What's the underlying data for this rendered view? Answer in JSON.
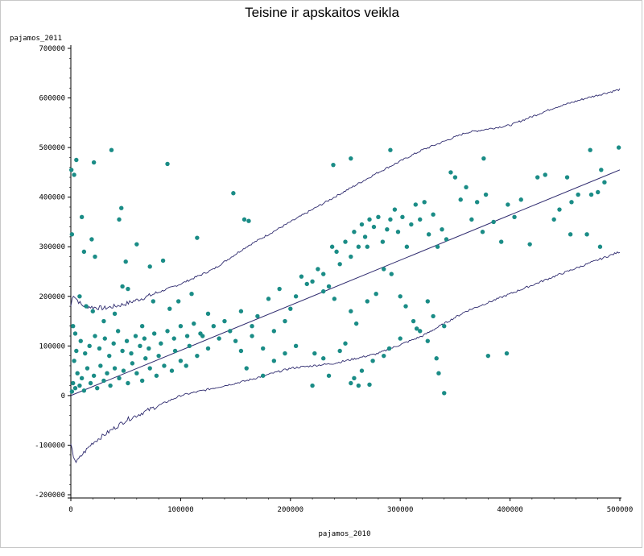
{
  "chart_data": {
    "type": "scatter",
    "title": "Teisine ir apskaitos veikla",
    "xlabel": "pajamos_2010",
    "ylabel": "pajamos_2011",
    "xlim": [
      0,
      500000
    ],
    "ylim": [
      -200000,
      700000
    ],
    "x_ticks": [
      "0",
      "100000",
      "200000",
      "300000",
      "400000",
      "500000"
    ],
    "y_ticks": [
      "-200000",
      "-100000",
      "0",
      "100000",
      "200000",
      "300000",
      "400000",
      "500000",
      "600000",
      "700000"
    ],
    "point_color": "#1a8c86",
    "line_color": "#2e2a6e",
    "grid": false,
    "series": [
      {
        "type": "points",
        "points": [
          [
            500,
            455000
          ],
          [
            3000,
            445000
          ],
          [
            5000,
            475000
          ],
          [
            21000,
            470000
          ],
          [
            37000,
            495000
          ],
          [
            88000,
            467000
          ],
          [
            239000,
            465000
          ],
          [
            255000,
            478000
          ],
          [
            291000,
            495000
          ],
          [
            376000,
            478000
          ],
          [
            473000,
            495000
          ],
          [
            499000,
            500000
          ],
          [
            1000,
            325000
          ],
          [
            10000,
            360000
          ],
          [
            12000,
            290000
          ],
          [
            19000,
            315000
          ],
          [
            22000,
            280000
          ],
          [
            44000,
            355000
          ],
          [
            46000,
            378000
          ],
          [
            50000,
            270000
          ],
          [
            60000,
            305000
          ],
          [
            72000,
            260000
          ],
          [
            84000,
            272000
          ],
          [
            115000,
            318000
          ],
          [
            148000,
            408000
          ],
          [
            158000,
            355000
          ],
          [
            162000,
            352000
          ],
          [
            2000,
            140000
          ],
          [
            4000,
            125000
          ],
          [
            8000,
            200000
          ],
          [
            14000,
            180000
          ],
          [
            20000,
            170000
          ],
          [
            30000,
            150000
          ],
          [
            40000,
            165000
          ],
          [
            47000,
            220000
          ],
          [
            52000,
            215000
          ],
          [
            65000,
            140000
          ],
          [
            75000,
            190000
          ],
          [
            90000,
            175000
          ],
          [
            98000,
            190000
          ],
          [
            110000,
            205000
          ],
          [
            125000,
            165000
          ],
          [
            140000,
            150000
          ],
          [
            150000,
            110000
          ],
          [
            155000,
            170000
          ],
          [
            165000,
            140000
          ],
          [
            170000,
            160000
          ],
          [
            180000,
            195000
          ],
          [
            185000,
            130000
          ],
          [
            190000,
            215000
          ],
          [
            195000,
            150000
          ],
          [
            200000,
            175000
          ],
          [
            205000,
            200000
          ],
          [
            210000,
            240000
          ],
          [
            215000,
            225000
          ],
          [
            220000,
            230000
          ],
          [
            225000,
            255000
          ],
          [
            230000,
            245000
          ],
          [
            235000,
            220000
          ],
          [
            238000,
            300000
          ],
          [
            242000,
            290000
          ],
          [
            245000,
            265000
          ],
          [
            250000,
            310000
          ],
          [
            255000,
            280000
          ],
          [
            258000,
            330000
          ],
          [
            262000,
            300000
          ],
          [
            265000,
            345000
          ],
          [
            268000,
            320000
          ],
          [
            270000,
            300000
          ],
          [
            272000,
            355000
          ],
          [
            276000,
            340000
          ],
          [
            280000,
            360000
          ],
          [
            284000,
            310000
          ],
          [
            288000,
            335000
          ],
          [
            291000,
            355000
          ],
          [
            295000,
            375000
          ],
          [
            298000,
            330000
          ],
          [
            302000,
            360000
          ],
          [
            306000,
            300000
          ],
          [
            310000,
            345000
          ],
          [
            314000,
            385000
          ],
          [
            318000,
            355000
          ],
          [
            322000,
            390000
          ],
          [
            326000,
            325000
          ],
          [
            330000,
            365000
          ],
          [
            334000,
            300000
          ],
          [
            338000,
            335000
          ],
          [
            342000,
            315000
          ],
          [
            346000,
            450000
          ],
          [
            350000,
            440000
          ],
          [
            355000,
            395000
          ],
          [
            360000,
            420000
          ],
          [
            365000,
            355000
          ],
          [
            370000,
            390000
          ],
          [
            375000,
            330000
          ],
          [
            378000,
            405000
          ],
          [
            385000,
            350000
          ],
          [
            392000,
            310000
          ],
          [
            398000,
            385000
          ],
          [
            404000,
            360000
          ],
          [
            410000,
            395000
          ],
          [
            418000,
            305000
          ],
          [
            425000,
            440000
          ],
          [
            432000,
            445000
          ],
          [
            440000,
            355000
          ],
          [
            445000,
            375000
          ],
          [
            452000,
            440000
          ],
          [
            456000,
            390000
          ],
          [
            462000,
            405000
          ],
          [
            474000,
            405000
          ],
          [
            480000,
            410000
          ],
          [
            483000,
            455000
          ],
          [
            486000,
            430000
          ],
          [
            482000,
            300000
          ],
          [
            470000,
            325000
          ],
          [
            455000,
            325000
          ],
          [
            230000,
            210000
          ],
          [
            240000,
            195000
          ],
          [
            255000,
            170000
          ],
          [
            260000,
            145000
          ],
          [
            270000,
            190000
          ],
          [
            278000,
            205000
          ],
          [
            285000,
            255000
          ],
          [
            292000,
            245000
          ],
          [
            300000,
            200000
          ],
          [
            305000,
            180000
          ],
          [
            312000,
            150000
          ],
          [
            318000,
            130000
          ],
          [
            325000,
            190000
          ],
          [
            330000,
            160000
          ],
          [
            340000,
            140000
          ],
          [
            300000,
            115000
          ],
          [
            315000,
            135000
          ],
          [
            325000,
            110000
          ],
          [
            333000,
            75000
          ],
          [
            290000,
            95000
          ],
          [
            285000,
            80000
          ],
          [
            275000,
            70000
          ],
          [
            265000,
            50000
          ],
          [
            258000,
            35000
          ],
          [
            255000,
            25000
          ],
          [
            262000,
            20000
          ],
          [
            272000,
            22000
          ],
          [
            235000,
            40000
          ],
          [
            220000,
            20000
          ],
          [
            222000,
            85000
          ],
          [
            230000,
            75000
          ],
          [
            245000,
            90000
          ],
          [
            250000,
            105000
          ],
          [
            335000,
            45000
          ],
          [
            340000,
            5000
          ],
          [
            380000,
            80000
          ],
          [
            397000,
            85000
          ],
          [
            160000,
            55000
          ],
          [
            175000,
            40000
          ],
          [
            185000,
            70000
          ],
          [
            195000,
            85000
          ],
          [
            205000,
            100000
          ],
          [
            175000,
            95000
          ],
          [
            165000,
            120000
          ],
          [
            155000,
            90000
          ],
          [
            145000,
            130000
          ],
          [
            135000,
            115000
          ],
          [
            130000,
            140000
          ],
          [
            120000,
            120000
          ],
          [
            125000,
            95000
          ],
          [
            115000,
            80000
          ],
          [
            108000,
            100000
          ],
          [
            105000,
            60000
          ],
          [
            100000,
            70000
          ],
          [
            95000,
            90000
          ],
          [
            92000,
            50000
          ],
          [
            85000,
            60000
          ],
          [
            80000,
            80000
          ],
          [
            78000,
            40000
          ],
          [
            72000,
            55000
          ],
          [
            68000,
            75000
          ],
          [
            65000,
            30000
          ],
          [
            60000,
            45000
          ],
          [
            56000,
            65000
          ],
          [
            52000,
            25000
          ],
          [
            48000,
            50000
          ],
          [
            44000,
            35000
          ],
          [
            40000,
            55000
          ],
          [
            36000,
            20000
          ],
          [
            33000,
            45000
          ],
          [
            30000,
            30000
          ],
          [
            27000,
            60000
          ],
          [
            24000,
            15000
          ],
          [
            21000,
            40000
          ],
          [
            18000,
            25000
          ],
          [
            15000,
            55000
          ],
          [
            12000,
            10000
          ],
          [
            10000,
            35000
          ],
          [
            8000,
            20000
          ],
          [
            6000,
            45000
          ],
          [
            4000,
            15000
          ],
          [
            2000,
            25000
          ],
          [
            1000,
            8000
          ],
          [
            3000,
            70000
          ],
          [
            5000,
            90000
          ],
          [
            9000,
            110000
          ],
          [
            13000,
            85000
          ],
          [
            17000,
            100000
          ],
          [
            22000,
            120000
          ],
          [
            26000,
            95000
          ],
          [
            31000,
            115000
          ],
          [
            35000,
            80000
          ],
          [
            39000,
            105000
          ],
          [
            43000,
            130000
          ],
          [
            47000,
            90000
          ],
          [
            51000,
            110000
          ],
          [
            55000,
            85000
          ],
          [
            59000,
            120000
          ],
          [
            63000,
            100000
          ],
          [
            67000,
            115000
          ],
          [
            71000,
            95000
          ],
          [
            76000,
            125000
          ],
          [
            82000,
            105000
          ],
          [
            88000,
            130000
          ],
          [
            94000,
            115000
          ],
          [
            100000,
            140000
          ],
          [
            106000,
            120000
          ],
          [
            112000,
            145000
          ],
          [
            118000,
            125000
          ]
        ]
      },
      {
        "type": "fit",
        "x": [
          0,
          500000
        ],
        "y": [
          0,
          455000
        ]
      },
      {
        "type": "upper-band",
        "x": [
          0,
          2000,
          5000,
          10000,
          20000,
          30000,
          40000,
          50000,
          70000,
          100000,
          130000,
          160000,
          200000,
          240000,
          280000,
          320000,
          360000,
          400000,
          440000,
          470000,
          500000
        ],
        "y": [
          180000,
          205000,
          195000,
          182000,
          178000,
          176000,
          180000,
          185000,
          200000,
          225000,
          255000,
          300000,
          350000,
          400000,
          450000,
          495000,
          530000,
          545000,
          580000,
          600000,
          617000
        ]
      },
      {
        "type": "lower-band",
        "x": [
          0,
          2000,
          5000,
          10000,
          20000,
          30000,
          40000,
          50000,
          70000,
          100000,
          130000,
          160000,
          200000,
          240000,
          280000,
          320000,
          360000,
          400000,
          440000,
          470000,
          500000
        ],
        "y": [
          -100000,
          -120000,
          -135000,
          -120000,
          -95000,
          -80000,
          -65000,
          -50000,
          -30000,
          0,
          15000,
          30000,
          55000,
          65000,
          85000,
          120000,
          170000,
          205000,
          240000,
          265000,
          290000
        ]
      }
    ]
  }
}
